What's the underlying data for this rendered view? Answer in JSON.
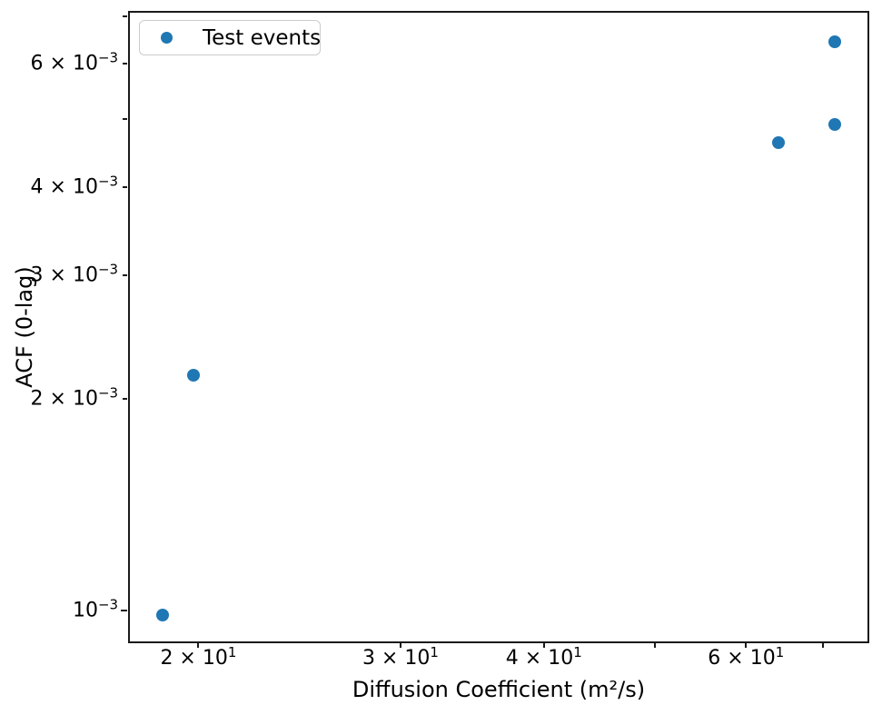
{
  "figure": {
    "background": "#ffffff",
    "spine_color": "#1a1a1a"
  },
  "chart_data": {
    "type": "scatter",
    "title": "",
    "xlabel": "Diffusion Coefficient (m²/s)",
    "ylabel": "ACF (0-lag)",
    "xscale": "log",
    "yscale": "log",
    "xlim": [
      17.4,
      76.7
    ],
    "ylim": [
      0.000904,
      0.00711
    ],
    "grid": false,
    "legend_position": "upper-left",
    "legend": [
      {
        "label": "Test events",
        "color": "#1f77b4"
      }
    ],
    "series": [
      {
        "name": "Test events",
        "color": "#1f77b4",
        "points": [
          {
            "x": 18.6,
            "y": 0.000985
          },
          {
            "x": 19.8,
            "y": 0.00216
          },
          {
            "x": 64.0,
            "y": 0.00463
          },
          {
            "x": 71.7,
            "y": 0.00492
          },
          {
            "x": 71.7,
            "y": 0.00645
          }
        ]
      }
    ],
    "x_ticks": [
      {
        "value": 20,
        "base": "2 × 10",
        "exp": "1"
      },
      {
        "value": 30,
        "base": "3 × 10",
        "exp": "1"
      },
      {
        "value": 40,
        "base": "4 × 10",
        "exp": "1"
      },
      {
        "value": 50,
        "base": "",
        "exp": ""
      },
      {
        "value": 60,
        "base": "6 × 10",
        "exp": "1"
      },
      {
        "value": 70,
        "base": "",
        "exp": ""
      }
    ],
    "y_ticks": [
      {
        "value": 0.001,
        "base": "10",
        "exp": "−3"
      },
      {
        "value": 0.002,
        "base": "2 × 10",
        "exp": "−3"
      },
      {
        "value": 0.003,
        "base": "3 × 10",
        "exp": "−3"
      },
      {
        "value": 0.004,
        "base": "4 × 10",
        "exp": "−3"
      },
      {
        "value": 0.005,
        "base": "",
        "exp": ""
      },
      {
        "value": 0.006,
        "base": "6 × 10",
        "exp": "−3"
      },
      {
        "value": 0.007,
        "base": "",
        "exp": ""
      }
    ]
  }
}
